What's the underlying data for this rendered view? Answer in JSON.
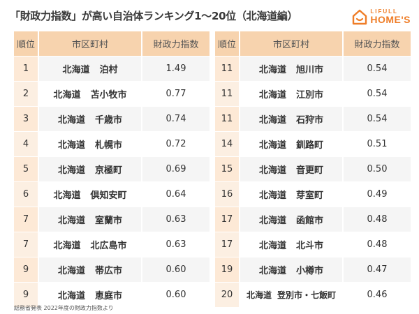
{
  "title": "「財政力指数」が高い自治体ランキング1～20位（北海道編）",
  "logo": {
    "line1": "LIFULL",
    "line2": "HOME'S",
    "color": "#ef7d27",
    "icon": "house-icon"
  },
  "headers": {
    "rank": "順位",
    "municipality": "市区町村",
    "index": "財政力指数"
  },
  "rows": [
    {
      "rank": "1",
      "pref": "北海道",
      "city": "泊村",
      "index": "1.49"
    },
    {
      "rank": "2",
      "pref": "北海道",
      "city": "苫小牧市",
      "index": "0.77"
    },
    {
      "rank": "3",
      "pref": "北海道",
      "city": "千歳市",
      "index": "0.74"
    },
    {
      "rank": "4",
      "pref": "北海道",
      "city": "札幌市",
      "index": "0.72"
    },
    {
      "rank": "5",
      "pref": "北海道",
      "city": "京極町",
      "index": "0.69"
    },
    {
      "rank": "6",
      "pref": "北海道",
      "city": "倶知安町",
      "index": "0.64"
    },
    {
      "rank": "7",
      "pref": "北海道",
      "city": "室蘭市",
      "index": "0.63"
    },
    {
      "rank": "7",
      "pref": "北海道",
      "city": "北広島市",
      "index": "0.63"
    },
    {
      "rank": "9",
      "pref": "北海道",
      "city": "帯広市",
      "index": "0.60"
    },
    {
      "rank": "9",
      "pref": "北海道",
      "city": "恵庭市",
      "index": "0.60"
    },
    {
      "rank": "11",
      "pref": "北海道",
      "city": "旭川市",
      "index": "0.54"
    },
    {
      "rank": "11",
      "pref": "北海道",
      "city": "江別市",
      "index": "0.54"
    },
    {
      "rank": "11",
      "pref": "北海道",
      "city": "石狩市",
      "index": "0.54"
    },
    {
      "rank": "14",
      "pref": "北海道",
      "city": "釧路町",
      "index": "0.51"
    },
    {
      "rank": "15",
      "pref": "北海道",
      "city": "音更町",
      "index": "0.50"
    },
    {
      "rank": "16",
      "pref": "北海道",
      "city": "芽室町",
      "index": "0.49"
    },
    {
      "rank": "17",
      "pref": "北海道",
      "city": "函館市",
      "index": "0.48"
    },
    {
      "rank": "17",
      "pref": "北海道",
      "city": "北斗市",
      "index": "0.48"
    },
    {
      "rank": "19",
      "pref": "北海道",
      "city": "小樽市",
      "index": "0.47"
    },
    {
      "rank": "20",
      "pref": "北海道",
      "city": "登別市・七飯町",
      "index": "0.46"
    }
  ],
  "source": "総務省発表 2022年度の財政力指数より",
  "colors": {
    "header_bg": "#f7d3ae",
    "rank_bg": "#fde9d6",
    "row_alt_bg": "#f5f5f5"
  }
}
